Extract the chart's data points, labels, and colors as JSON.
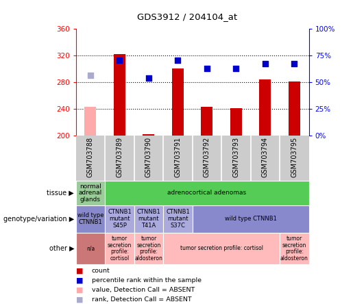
{
  "title": "GDS3912 / 204104_at",
  "samples": [
    "GSM703788",
    "GSM703789",
    "GSM703790",
    "GSM703791",
    "GSM703792",
    "GSM703793",
    "GSM703794",
    "GSM703795"
  ],
  "count_values": [
    null,
    322,
    202,
    300,
    243,
    241,
    284,
    281
  ],
  "count_absent": [
    243,
    null,
    null,
    null,
    null,
    null,
    null,
    null
  ],
  "rank_values": [
    null,
    313,
    286,
    313,
    300,
    300,
    308,
    308
  ],
  "rank_absent": [
    290,
    null,
    null,
    null,
    null,
    null,
    null,
    null
  ],
  "ylim": [
    200,
    360
  ],
  "yticks": [
    200,
    240,
    280,
    320,
    360
  ],
  "y2lim": [
    0,
    100
  ],
  "y2ticks": [
    0,
    25,
    50,
    75,
    100
  ],
  "y2labels": [
    "0%",
    "25%",
    "50%",
    "75%",
    "100%"
  ],
  "bar_color": "#cc0000",
  "bar_absent_color": "#ffaaaa",
  "rank_color": "#0000cc",
  "rank_absent_color": "#aaaacc",
  "tissue_row": {
    "label": "tissue",
    "segments": [
      {
        "text": "normal\nadrenal\nglands",
        "span": [
          0,
          1
        ],
        "color": "#99cc99",
        "text_color": "#000000"
      },
      {
        "text": "adrenocortical adenomas",
        "span": [
          1,
          8
        ],
        "color": "#55cc55",
        "text_color": "#000000"
      }
    ]
  },
  "genotype_row": {
    "label": "genotype/variation",
    "segments": [
      {
        "text": "wild type\nCTNNB1",
        "span": [
          0,
          1
        ],
        "color": "#8888cc",
        "text_color": "#000000"
      },
      {
        "text": "CTNNB1\nmutant\nS45P",
        "span": [
          1,
          2
        ],
        "color": "#aaaadd",
        "text_color": "#000000"
      },
      {
        "text": "CTNNB1\nmutant\nT41A",
        "span": [
          2,
          3
        ],
        "color": "#aaaadd",
        "text_color": "#000000"
      },
      {
        "text": "CTNNB1\nmutant\nS37C",
        "span": [
          3,
          4
        ],
        "color": "#aaaadd",
        "text_color": "#000000"
      },
      {
        "text": "wild type CTNNB1",
        "span": [
          4,
          8
        ],
        "color": "#8888cc",
        "text_color": "#000000"
      }
    ]
  },
  "other_row": {
    "label": "other",
    "segments": [
      {
        "text": "n/a",
        "span": [
          0,
          1
        ],
        "color": "#cc7777",
        "text_color": "#000000"
      },
      {
        "text": "tumor\nsecretion\nprofile:\ncortisol",
        "span": [
          1,
          2
        ],
        "color": "#ffbbbb",
        "text_color": "#000000"
      },
      {
        "text": "tumor\nsecretion\nprofile:\naldosteron",
        "span": [
          2,
          3
        ],
        "color": "#ffbbbb",
        "text_color": "#000000"
      },
      {
        "text": "tumor secretion profile: cortisol",
        "span": [
          3,
          7
        ],
        "color": "#ffbbbb",
        "text_color": "#000000"
      },
      {
        "text": "tumor\nsecretion\nprofile:\naldosteron",
        "span": [
          7,
          8
        ],
        "color": "#ffbbbb",
        "text_color": "#000000"
      }
    ]
  },
  "legend_items": [
    {
      "color": "#cc0000",
      "label": "count",
      "marker": "s"
    },
    {
      "color": "#0000cc",
      "label": "percentile rank within the sample",
      "marker": "s"
    },
    {
      "color": "#ffaaaa",
      "label": "value, Detection Call = ABSENT",
      "marker": "s"
    },
    {
      "color": "#aaaacc",
      "label": "rank, Detection Call = ABSENT",
      "marker": "s"
    }
  ],
  "background_color": "#ffffff",
  "sample_bg_color": "#cccccc",
  "fig_width": 5.15,
  "fig_height": 4.44,
  "dpi": 100
}
